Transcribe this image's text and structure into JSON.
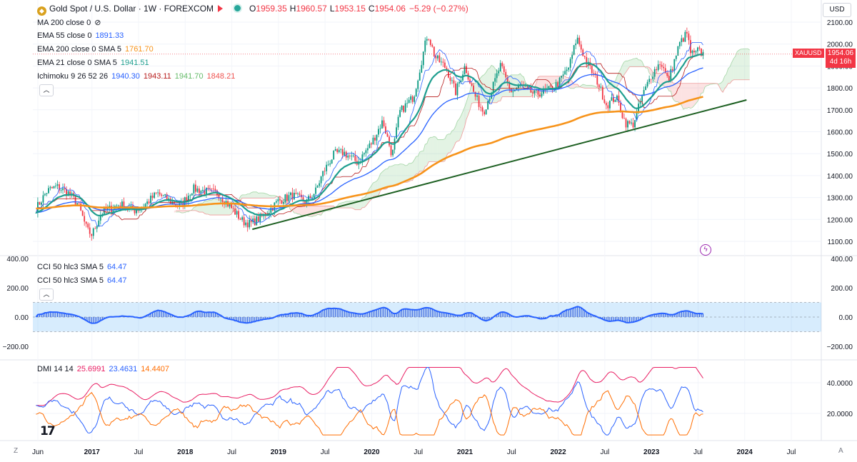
{
  "header": {
    "symbol_title": "Gold Spot / U.S. Dollar · 1W · FOREXCOM",
    "ohlc": [
      {
        "k": "O",
        "v": "1959.35"
      },
      {
        "k": "H",
        "v": "1960.57"
      },
      {
        "k": "L",
        "v": "1953.15"
      },
      {
        "k": "C",
        "v": "1954.06"
      }
    ],
    "change": "−5.29 (−0.27%)",
    "currency": "USD"
  },
  "indicators": [
    {
      "label": "MA 200 close 0",
      "values": [],
      "hidden_icon": "eye-off-icon"
    },
    {
      "label": "EMA 55 close 0",
      "values": [
        {
          "v": "1891.33",
          "color": "#2962ff"
        }
      ]
    },
    {
      "label": "EMA 200 close 0 SMA 5",
      "values": [
        {
          "v": "1761.70",
          "color": "#f7931a"
        }
      ]
    },
    {
      "label": "EMA 21 close 0 SMA 5",
      "values": [
        {
          "v": "1941.51",
          "color": "#1e9e8f"
        }
      ]
    },
    {
      "label": "Ichimoku 9 26 52 26",
      "values": [
        {
          "v": "1940.30",
          "color": "#2962ff"
        },
        {
          "v": "1943.11",
          "color": "#b71c1c"
        },
        {
          "v": "1941.70",
          "color": "#66bb6a"
        },
        {
          "v": "1848.21",
          "color": "#ef5350"
        }
      ]
    }
  ],
  "cci_legends": [
    {
      "label": "CCI 50 hlc3 SMA 5",
      "value": "64.47"
    },
    {
      "label": "CCI 50 hlc3 SMA 5",
      "value": "64.47"
    }
  ],
  "dmi_legend": {
    "label": "DMI 14 14",
    "values": [
      {
        "v": "25.6991",
        "color": "#e91e63"
      },
      {
        "v": "23.4631",
        "color": "#2962ff"
      },
      {
        "v": "14.4407",
        "color": "#ff6d00"
      }
    ]
  },
  "price_tag": {
    "symbol": "XAUUSD",
    "price": "1954.06",
    "countdown": "4d 16h"
  },
  "bottom_left": "Z",
  "bottom_right": "A",
  "chart_data": {
    "type": "candlestick",
    "price_axis": {
      "ticks": [
        1100,
        1200,
        1300,
        1400,
        1500,
        1600,
        1700,
        1800,
        1900,
        2000,
        2100
      ],
      "tick_labels": [
        "1100.00",
        "1200.00",
        "1300.00",
        "1400.00",
        "1500.00",
        "1600.00",
        "1700.00",
        "1800.00",
        "1900.00",
        "2000.00",
        "2100.00"
      ]
    },
    "cci_axis": {
      "ticks": [
        -200,
        0,
        200,
        400
      ],
      "tick_labels": [
        "−200.00",
        "0.00",
        "200.00",
        "400.00"
      ],
      "band": [
        -100,
        100
      ]
    },
    "dmi_axis": {
      "ticks": [
        20,
        40
      ],
      "tick_labels": [
        "20.0000",
        "40.0000"
      ]
    },
    "time_axis": {
      "labels": [
        "Jun",
        "2017",
        "Jul",
        "2018",
        "Jul",
        "2019",
        "Jul",
        "2020",
        "Jul",
        "2021",
        "Jul",
        "2022",
        "Jul",
        "2023",
        "Jul",
        "2024",
        "Jul"
      ],
      "dates": [
        2016.42,
        2017.0,
        2017.5,
        2018.0,
        2018.5,
        2019.0,
        2019.5,
        2020.0,
        2020.5,
        2021.0,
        2021.5,
        2022.0,
        2022.5,
        2023.0,
        2023.5,
        2024.0,
        2024.5
      ],
      "bold": [
        false,
        true,
        false,
        true,
        false,
        true,
        false,
        true,
        false,
        true,
        false,
        true,
        false,
        true,
        false,
        true,
        false
      ]
    },
    "price_keypoints": [
      [
        2016.4,
        1250
      ],
      [
        2016.52,
        1330
      ],
      [
        2016.62,
        1350
      ],
      [
        2016.75,
        1320
      ],
      [
        2016.85,
        1270
      ],
      [
        2016.95,
        1150
      ],
      [
        2017.0,
        1130
      ],
      [
        2017.1,
        1230
      ],
      [
        2017.2,
        1250
      ],
      [
        2017.3,
        1270
      ],
      [
        2017.45,
        1240
      ],
      [
        2017.55,
        1260
      ],
      [
        2017.7,
        1320
      ],
      [
        2017.85,
        1280
      ],
      [
        2017.95,
        1260
      ],
      [
        2018.08,
        1340
      ],
      [
        2018.2,
        1330
      ],
      [
        2018.35,
        1320
      ],
      [
        2018.5,
        1250
      ],
      [
        2018.62,
        1190
      ],
      [
        2018.7,
        1180
      ],
      [
        2018.85,
        1220
      ],
      [
        2019.0,
        1285
      ],
      [
        2019.15,
        1310
      ],
      [
        2019.3,
        1280
      ],
      [
        2019.4,
        1330
      ],
      [
        2019.48,
        1415
      ],
      [
        2019.6,
        1500
      ],
      [
        2019.7,
        1505
      ],
      [
        2019.85,
        1460
      ],
      [
        2020.0,
        1550
      ],
      [
        2020.12,
        1650
      ],
      [
        2020.22,
        1490
      ],
      [
        2020.3,
        1690
      ],
      [
        2020.45,
        1760
      ],
      [
        2020.6,
        2050
      ],
      [
        2020.68,
        1940
      ],
      [
        2020.8,
        1890
      ],
      [
        2020.9,
        1780
      ],
      [
        2021.0,
        1900
      ],
      [
        2021.1,
        1770
      ],
      [
        2021.2,
        1690
      ],
      [
        2021.38,
        1900
      ],
      [
        2021.5,
        1780
      ],
      [
        2021.6,
        1810
      ],
      [
        2021.75,
        1770
      ],
      [
        2021.9,
        1790
      ],
      [
        2022.0,
        1820
      ],
      [
        2022.12,
        1900
      ],
      [
        2022.2,
        2030
      ],
      [
        2022.3,
        1920
      ],
      [
        2022.42,
        1830
      ],
      [
        2022.52,
        1720
      ],
      [
        2022.62,
        1760
      ],
      [
        2022.72,
        1640
      ],
      [
        2022.8,
        1630
      ],
      [
        2022.9,
        1760
      ],
      [
        2023.0,
        1860
      ],
      [
        2023.1,
        1920
      ],
      [
        2023.18,
        1830
      ],
      [
        2023.3,
        2000
      ],
      [
        2023.38,
        2050
      ],
      [
        2023.42,
        1960
      ],
      [
        2023.46,
        1950
      ],
      [
        2023.5,
        1970
      ],
      [
        2023.55,
        1955
      ]
    ],
    "series": [
      {
        "name": "EMA 200 close 0 SMA 5",
        "value": 1761.7,
        "color": "#f7931a"
      },
      {
        "name": "EMA 55 close 0",
        "value": 1891.33,
        "color": "#2962ff"
      },
      {
        "name": "EMA 21 close 0 SMA 5",
        "value": 1941.51,
        "color": "#1e9e8f"
      }
    ],
    "trendline": {
      "from": [
        2018.72,
        1155
      ],
      "to": [
        2024.02,
        1745
      ],
      "color": "#1b5e20"
    },
    "last_price": 1954.06
  }
}
